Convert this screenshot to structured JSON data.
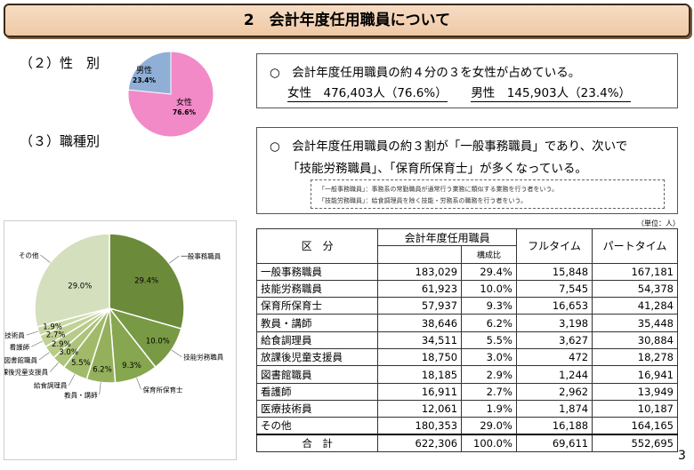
{
  "title": "2　会計年度任用職員について",
  "section2": {
    "heading": "（２）性　別"
  },
  "section3": {
    "heading": "（３）職種別"
  },
  "gender_box": {
    "line1": "○　会計年度任用職員の約４分の３を女性が占めている。",
    "female": "女性　476,403人（76.6%）",
    "male": "男性　145,903人（23.4%）"
  },
  "job_box": {
    "line1": "○　会計年度任用職員の約３割が「一般事務職員」であり、次いで",
    "line2": "「技能労務職員」、「保育所保育士」が多くなっている。",
    "note1": "「一般事務職員」：事務系の常勤職員が通常行う業務に類似する業務を行う者をいう。",
    "note2": "「技能労務職員」：給食調理員を除く技能・労務系の職務を行う者をいう。"
  },
  "unit": "（単位：人）",
  "table": {
    "headers": {
      "category": "区　分",
      "group": "会計年度任用職員",
      "ratio": "構成比",
      "fulltime": "フルタイム",
      "parttime": "パートタイム"
    },
    "rows": [
      {
        "name": "一般事務職員",
        "total": "183,029",
        "ratio": "29.4%",
        "full": "15,848",
        "part": "167,181"
      },
      {
        "name": "技能労務職員",
        "total": "61,923",
        "ratio": "10.0%",
        "full": "7,545",
        "part": "54,378"
      },
      {
        "name": "保育所保育士",
        "total": "57,937",
        "ratio": "9.3%",
        "full": "16,653",
        "part": "41,284"
      },
      {
        "name": "教員・講師",
        "total": "38,646",
        "ratio": "6.2%",
        "full": "3,198",
        "part": "35,448"
      },
      {
        "name": "給食調理員",
        "total": "34,511",
        "ratio": "5.5%",
        "full": "3,627",
        "part": "30,884"
      },
      {
        "name": "放課後児童支援員",
        "total": "18,750",
        "ratio": "3.0%",
        "full": "472",
        "part": "18,278"
      },
      {
        "name": "図書館職員",
        "total": "18,185",
        "ratio": "2.9%",
        "full": "1,244",
        "part": "16,941"
      },
      {
        "name": "看護師",
        "total": "16,911",
        "ratio": "2.7%",
        "full": "2,962",
        "part": "13,949"
      },
      {
        "name": "医療技術員",
        "total": "12,061",
        "ratio": "1.9%",
        "full": "1,874",
        "part": "10,187"
      },
      {
        "name": "その他",
        "total": "180,353",
        "ratio": "29.0%",
        "full": "16,188",
        "part": "164,165"
      }
    ],
    "total_row": {
      "name": "合　計",
      "total": "622,306",
      "ratio": "100.0%",
      "full": "69,611",
      "part": "552,695"
    }
  },
  "page_number": "3",
  "chart_data": [
    {
      "type": "pie",
      "categories": [
        "男性",
        "女性"
      ],
      "values": [
        23.4,
        76.6
      ],
      "labels": [
        "23.4%",
        "76.6%"
      ],
      "colors": [
        "#8fafd6",
        "#f28ac8"
      ]
    },
    {
      "type": "pie",
      "categories": [
        "一般事務職員",
        "技能労務職員",
        "保育所保育士",
        "教員・講師",
        "給食調理員",
        "放課後児童支援員",
        "図書館職員",
        "看護師",
        "医療技術員",
        "その他"
      ],
      "values": [
        29.4,
        10.0,
        9.3,
        6.2,
        5.5,
        3.0,
        2.9,
        2.7,
        1.9,
        29.0
      ],
      "labels": [
        "29.4%",
        "10.0%",
        "9.3%",
        "6.2%",
        "5.5%",
        "3.0%",
        "2.9%",
        "2.7%",
        "1.9%",
        "29.0%"
      ],
      "colors": [
        "#6b8a3a",
        "#799a45",
        "#86a64f",
        "#94b05c",
        "#a1ba6a",
        "#adc379",
        "#b8cb88",
        "#c2d296",
        "#cbd9a4",
        "#d4e0bd"
      ]
    }
  ]
}
